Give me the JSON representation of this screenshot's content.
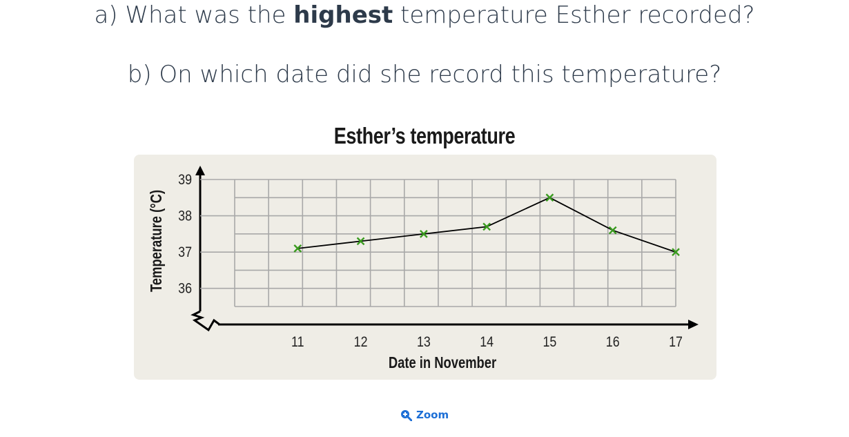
{
  "question_a": {
    "prefix": "a) What was the ",
    "bold": "highest",
    "suffix": " temperature Esther recorded?"
  },
  "question_b": "b) On which date did she record this temperature?",
  "zoom": {
    "label": "Zoom",
    "icon": "zoom-in-icon"
  },
  "colors": {
    "marker": "#3a9b1f",
    "line": "#000000",
    "grid": "#a8a8a8",
    "panel": "#efede6",
    "link": "#1d6fd6"
  },
  "chart_data": {
    "type": "line",
    "title": "Esther’s temperature",
    "xlabel": "Date in November",
    "ylabel": "Temperature (°C)",
    "x": [
      11,
      12,
      13,
      14,
      15,
      16,
      17
    ],
    "x_ticks": [
      "11",
      "12",
      "13",
      "14",
      "15",
      "16",
      "17"
    ],
    "y_ticks": [
      "36",
      "37",
      "38",
      "39"
    ],
    "series": [
      {
        "values": [
          37.1,
          37.3,
          37.5,
          37.7,
          38.5,
          37.6,
          37.0
        ]
      }
    ],
    "xlim": [
      10,
      17
    ],
    "ylim": [
      35.5,
      39
    ],
    "y_axis_break": true,
    "grid": true,
    "marker": "x"
  }
}
